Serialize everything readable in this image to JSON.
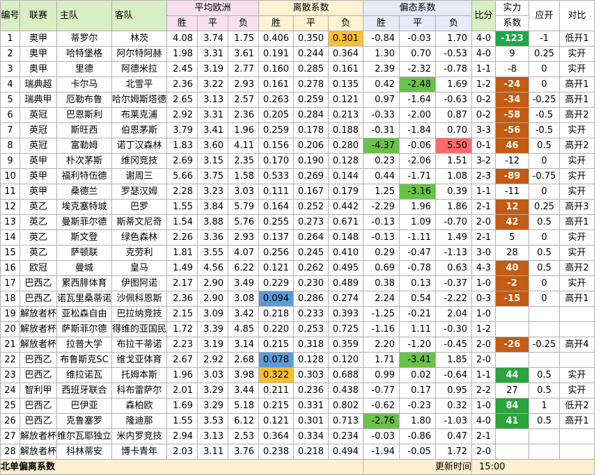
{
  "headers": {
    "id": "编号",
    "league": "联赛",
    "home": "主队",
    "away": "客队",
    "avg_euro": "平均欧洲",
    "disc": "离散系数",
    "skew": "偏态系数",
    "score": "比分",
    "strength": "实力",
    "strength_sub": "系数",
    "handicap": "应开",
    "compare": "对比",
    "win": "胜",
    "draw": "平",
    "lose": "负"
  },
  "rows": [
    {
      "id": "1",
      "league": "奥甲",
      "home": "蒂罗尔",
      "away": "林茨",
      "e1": "4.08",
      "e2": "3.74",
      "e3": "1.75",
      "d1": "0.406",
      "d2": "0.350",
      "d3": "0.301",
      "s1": "-0.84",
      "s2": "-0.03",
      "s3": "1.70",
      "score": "4-0",
      "str": "-123",
      "hc": "-1",
      "cmp": "低开1"
    },
    {
      "id": "2",
      "league": "奥甲",
      "home": "哈特堡格",
      "away": "阿尔特阿赫",
      "e1": "1.98",
      "e2": "3.31",
      "e3": "3.61",
      "d1": "0.191",
      "d2": "0.244",
      "d3": "0.364",
      "s1": "1.30",
      "s2": "0.70",
      "s3": "-0.53",
      "score": "4-0",
      "str": "9",
      "hc": "0.25",
      "cmp": "实开"
    },
    {
      "id": "3",
      "league": "奥甲",
      "home": "里德",
      "away": "阿德米拉",
      "e1": "2.45",
      "e2": "3.19",
      "e3": "2.77",
      "d1": "0.160",
      "d2": "0.285",
      "d3": "0.161",
      "s1": "2.39",
      "s2": "-2.32",
      "s3": "-0.78",
      "score": "1-1",
      "str": "-8",
      "hc": "0",
      "cmp": "实开"
    },
    {
      "id": "4",
      "league": "瑞典超",
      "home": "卡尔马",
      "away": "北雪平",
      "e1": "2.36",
      "e2": "3.22",
      "e3": "2.93",
      "d1": "0.161",
      "d2": "0.278",
      "d3": "0.135",
      "s1": "0.42",
      "s2": "-2.48",
      "s3": "1.69",
      "score": "1-2",
      "str": "-24",
      "hc": "0",
      "cmp": "高开1"
    },
    {
      "id": "5",
      "league": "瑞典甲",
      "home": "厄勒布鲁",
      "away": "哈尔姆斯塔德",
      "e1": "2.65",
      "e2": "3.13",
      "e3": "2.57",
      "d1": "0.263",
      "d2": "0.259",
      "d3": "0.121",
      "s1": "0.97",
      "s2": "-1.64",
      "s3": "-0.63",
      "score": "0-2",
      "str": "-34",
      "hc": "-0.25",
      "cmp": "高开1"
    },
    {
      "id": "6",
      "league": "英冠",
      "home": "巴恩斯利",
      "away": "布莱克浦",
      "e1": "2.92",
      "e2": "3.31",
      "e3": "2.36",
      "d1": "0.205",
      "d2": "0.284",
      "d3": "0.213",
      "s1": "-0.33",
      "s2": "-2.00",
      "s3": "0.87",
      "score": "0-2",
      "str": "-58",
      "hc": "-0.5",
      "cmp": "高开2"
    },
    {
      "id": "7",
      "league": "英冠",
      "home": "斯旺西",
      "away": "伯恩茅斯",
      "e1": "3.79",
      "e2": "3.41",
      "e3": "1.96",
      "d1": "0.259",
      "d2": "0.178",
      "d3": "0.188",
      "s1": "-0.31",
      "s2": "-1.84",
      "s3": "0.70",
      "score": "3-3",
      "str": "-56",
      "hc": "-0.5",
      "cmp": "实开"
    },
    {
      "id": "8",
      "league": "英冠",
      "home": "富勒姆",
      "away": "诺丁汉森林",
      "e1": "1.83",
      "e2": "3.60",
      "e3": "4.11",
      "d1": "0.156",
      "d2": "0.206",
      "d3": "0.280",
      "s1": "-4.37",
      "s2": "-0.06",
      "s3": "5.50",
      "score": "0-1",
      "str": "46",
      "hc": "0.5",
      "cmp": "高开2"
    },
    {
      "id": "9",
      "league": "英甲",
      "home": "朴次茅斯",
      "away": "维冈竞技",
      "e1": "2.69",
      "e2": "3.15",
      "e3": "2.35",
      "d1": "0.170",
      "d2": "0.190",
      "d3": "0.128",
      "s1": "0.23",
      "s2": "-2.06",
      "s3": "1.51",
      "score": "3-2",
      "str": "-12",
      "hc": "0",
      "cmp": "实开"
    },
    {
      "id": "10",
      "league": "英甲",
      "home": "福利特伍德",
      "away": "谢周三",
      "e1": "5.66",
      "e2": "3.75",
      "e3": "1.58",
      "d1": "0.533",
      "d2": "0.269",
      "d3": "0.144",
      "s1": "0.44",
      "s2": "-1.71",
      "s3": "1.08",
      "score": "2-3",
      "str": "-89",
      "hc": "-0.75",
      "cmp": "实开"
    },
    {
      "id": "11",
      "league": "英甲",
      "home": "桑德兰",
      "away": "罗瑟汉姆",
      "e1": "2.28",
      "e2": "3.23",
      "e3": "3.03",
      "d1": "0.111",
      "d2": "0.167",
      "d3": "0.179",
      "s1": "1.25",
      "s2": "-3.16",
      "s3": "0.39",
      "score": "1-1",
      "str": "-11",
      "hc": "0",
      "cmp": "实开"
    },
    {
      "id": "12",
      "league": "英乙",
      "home": "埃克塞特城",
      "away": "巴罗",
      "e1": "1.55",
      "e2": "3.84",
      "e3": "5.79",
      "d1": "0.164",
      "d2": "0.252",
      "d3": "0.442",
      "s1": "-2.29",
      "s2": "1.96",
      "s3": "1.86",
      "score": "2-1",
      "str": "12",
      "hc": "0.25",
      "cmp": "高开3"
    },
    {
      "id": "13",
      "league": "英乙",
      "home": "曼斯菲尔德",
      "away": "斯蒂文尼奇",
      "e1": "1.54",
      "e2": "3.88",
      "e3": "5.76",
      "d1": "0.255",
      "d2": "0.273",
      "d3": "0.671",
      "s1": "-0.13",
      "s2": "1.09",
      "s3": "-0.70",
      "score": "2-0",
      "str": "42",
      "hc": "0.5",
      "cmp": "高开1"
    },
    {
      "id": "14",
      "league": "英乙",
      "home": "斯文登",
      "away": "绿色森林",
      "e1": "2.26",
      "e2": "3.36",
      "e3": "2.93",
      "d1": "0.137",
      "d2": "0.264",
      "d3": "0.148",
      "s1": "-0.13",
      "s2": "-1.11",
      "s3": "1.49",
      "score": "2-1",
      "str": "5",
      "hc": "0",
      "cmp": "实开"
    },
    {
      "id": "15",
      "league": "英乙",
      "home": "萨顿联",
      "away": "克劳利",
      "e1": "1.81",
      "e2": "3.55",
      "e3": "4.07",
      "d1": "0.256",
      "d2": "0.245",
      "d3": "0.410",
      "s1": "0.29",
      "s2": "-0.47",
      "s3": "-1.13",
      "score": "3-0",
      "str": "28",
      "hc": "0.5",
      "cmp": "实开"
    },
    {
      "id": "16",
      "league": "欧冠",
      "home": "曼城",
      "away": "皇马",
      "e1": "1.49",
      "e2": "4.56",
      "e3": "6.22",
      "d1": "0.121",
      "d2": "0.262",
      "d3": "0.495",
      "s1": "0.69",
      "s2": "-0.78",
      "s3": "0.63",
      "score": "4-3",
      "str": "40",
      "hc": "0.5",
      "cmp": "高开2"
    },
    {
      "id": "17",
      "league": "巴西乙",
      "home": "累西腓体育",
      "away": "伊图阿诺",
      "e1": "2.17",
      "e2": "2.90",
      "e3": "3.49",
      "d1": "0.229",
      "d2": "0.230",
      "d3": "0.489",
      "s1": "0.38",
      "s2": "0.13",
      "s3": "-0.37",
      "score": "1-0",
      "str": "-2",
      "hc": "0",
      "cmp": "实开"
    },
    {
      "id": "18",
      "league": "巴西乙",
      "home": "诺瓦里桑蒂诺",
      "away": "沙佩科恩斯",
      "e1": "2.36",
      "e2": "2.90",
      "e3": "3.08",
      "d1": "0.094",
      "d2": "0.286",
      "d3": "0.274",
      "s1": "2.24",
      "s2": "0.54",
      "s3": "-2.22",
      "score": "0-3",
      "str": "-15",
      "hc": "0",
      "cmp": "高开1"
    },
    {
      "id": "19",
      "league": "解放者杯",
      "home": "亚松森自由",
      "away": "巴拉纳竞技",
      "e1": "2.15",
      "e2": "3.09",
      "e3": "3.42",
      "d1": "0.218",
      "d2": "0.233",
      "d3": "0.393",
      "s1": "-1.25",
      "s2": "-0.21",
      "s3": "2.04",
      "score": "1-0",
      "str": "",
      "hc": "",
      "cmp": ""
    },
    {
      "id": "20",
      "league": "解放者杯",
      "home": "萨斯菲尔德",
      "away": "得维的亚国民",
      "e1": "1.72",
      "e2": "3.39",
      "e3": "4.85",
      "d1": "0.220",
      "d2": "0.253",
      "d3": "0.725",
      "s1": "-1.16",
      "s2": "1.11",
      "s3": "-0.30",
      "score": "1-2",
      "str": "",
      "hc": "",
      "cmp": ""
    },
    {
      "id": "21",
      "league": "解放者杯",
      "home": "拉普大学",
      "away": "布拉干蒂诺",
      "e1": "2.23",
      "e2": "3.19",
      "e3": "3.14",
      "d1": "0.215",
      "d2": "0.318",
      "d3": "0.359",
      "s1": "2.20",
      "s2": "-1.20",
      "s3": "-0.45",
      "score": "2-0",
      "str": "-26",
      "hc": "-0.25",
      "cmp": "高开4"
    },
    {
      "id": "22",
      "league": "巴西乙",
      "home": "布鲁斯克SC",
      "away": "维戈亚体育",
      "e1": "2.67",
      "e2": "2.92",
      "e3": "2.68",
      "d1": "0.078",
      "d2": "0.128",
      "d3": "0.120",
      "s1": "1.71",
      "s2": "-3.41",
      "s3": "1.85",
      "score": "2-0",
      "str": "",
      "hc": "",
      "cmp": ""
    },
    {
      "id": "23",
      "league": "巴西乙",
      "home": "维拉诺瓦",
      "away": "托姆本斯",
      "e1": "1.96",
      "e2": "3.03",
      "e3": "3.98",
      "d1": "0.322",
      "d2": "0.303",
      "d3": "0.688",
      "s1": "0.99",
      "s2": "0.02",
      "s3": "-0.64",
      "score": "1-1",
      "str": "44",
      "hc": "0.5",
      "cmp": "实开"
    },
    {
      "id": "24",
      "league": "智利甲",
      "home": "西班牙联合",
      "away": "科布雷萨尔",
      "e1": "2.01",
      "e2": "3.29",
      "e3": "3.44",
      "d1": "0.211",
      "d2": "0.236",
      "d3": "0.438",
      "s1": "-0.77",
      "s2": "0.17",
      "s3": "0.95",
      "score": "2-2",
      "str": "27",
      "hc": "0.5",
      "cmp": "实开"
    },
    {
      "id": "25",
      "league": "巴西乙",
      "home": "巴伊亚",
      "away": "森柏欧",
      "e1": "1.69",
      "e2": "3.29",
      "e3": "5.18",
      "d1": "0.215",
      "d2": "0.331",
      "d3": "0.802",
      "s1": "-0.62",
      "s2": "-0.23",
      "s3": "0.32",
      "score": "1-0",
      "str": "84",
      "hc": "1",
      "cmp": "低开2"
    },
    {
      "id": "26",
      "league": "巴西乙",
      "home": "克鲁塞罗",
      "away": "隆迪那",
      "e1": "1.55",
      "e2": "3.53",
      "e3": "6.12",
      "d1": "0.121",
      "d2": "0.301",
      "d3": "0.713",
      "s1": "-2.76",
      "s2": "1.80",
      "s3": "-1.03",
      "score": "4-0",
      "str": "41",
      "hc": "0.5",
      "cmp": "高开1"
    },
    {
      "id": "27",
      "league": "解放者杯",
      "home": "维尔瓦耶独立",
      "away": "米内罗竞技",
      "e1": "2.94",
      "e2": "3.13",
      "e3": "2.53",
      "d1": "0.364",
      "d2": "0.334",
      "d3": "0.234",
      "s1": "-0.03",
      "s2": "-0.86",
      "s3": "0.47",
      "score": "2-1",
      "str": "",
      "hc": "",
      "cmp": ""
    },
    {
      "id": "28",
      "league": "解放者杯",
      "home": "科林蒂安",
      "away": "博卡青年",
      "e1": "2.03",
      "e2": "3.11",
      "e3": "3.76",
      "d1": "0.238",
      "d2": "0.218",
      "d3": "0.494",
      "s1": "-1.94",
      "s2": "-0.05",
      "s3": "1.72",
      "score": "2-0",
      "str": "",
      "hc": "",
      "cmp": ""
    }
  ],
  "highlights": {
    "orange": [
      "1.d3",
      "23.d1"
    ],
    "blue": [
      "18.d1",
      "22.d1"
    ],
    "green": [
      "4.s2",
      "8.s1",
      "11.s2",
      "22.s2",
      "26.s1"
    ],
    "red": [
      "8.s3"
    ]
  },
  "footer": {
    "title": "北单偏离系数",
    "time_label": "更新时间",
    "time": "15:00"
  },
  "colors": {
    "header_green": "#d8eec4",
    "euro_pink": "#f8e0ee",
    "disc_yellow": "#fdf3d2",
    "skew_blue": "#e4ecf8",
    "strength_brown": "#c55a11",
    "strength_green": "#2aa43c"
  }
}
